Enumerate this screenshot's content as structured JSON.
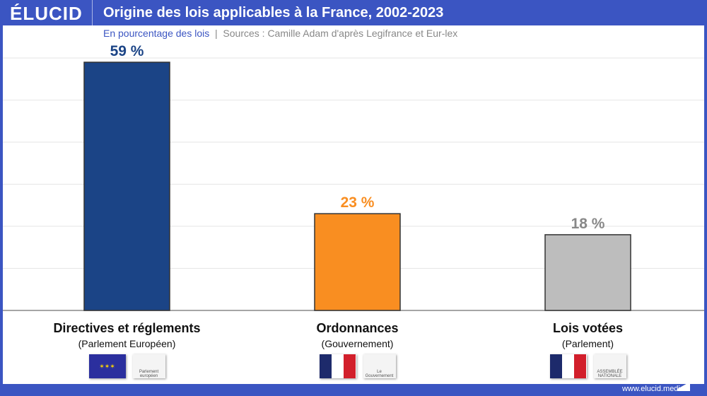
{
  "header": {
    "logo": "ÉLUCID",
    "title": "Origine des lois applicables à la France, 2002-2023"
  },
  "subtitle": {
    "unit": "En pourcentage des lois",
    "separator": "|",
    "source": "Sources : Camille Adam d'après Legifrance et Eur-lex"
  },
  "chart_data": {
    "type": "bar",
    "categories": [
      "Directives et réglements",
      "Ordonnances",
      "Lois votées"
    ],
    "subcategories": [
      "(Parlement Européen)",
      "(Gouvernement)",
      "(Parlement)"
    ],
    "values": [
      59,
      23,
      18
    ],
    "data_labels": [
      "59 %",
      "23 %",
      "18 %"
    ],
    "colors": [
      "#1b4486",
      "#f98e21",
      "#bdbdbd"
    ],
    "label_colors": [
      "#1b4486",
      "#f98e21",
      "#888888"
    ],
    "ylim": [
      0,
      60
    ],
    "grid": true
  },
  "logos": [
    {
      "flag": "eu-flag",
      "inst": "Parlement européen"
    },
    {
      "flag": "france-flag",
      "inst": "Le Gouvernement"
    },
    {
      "flag": "france-flag",
      "inst": "ASSEMBLÉE NATIONALE"
    }
  ],
  "footer": {
    "url": "www.elucid.media"
  }
}
